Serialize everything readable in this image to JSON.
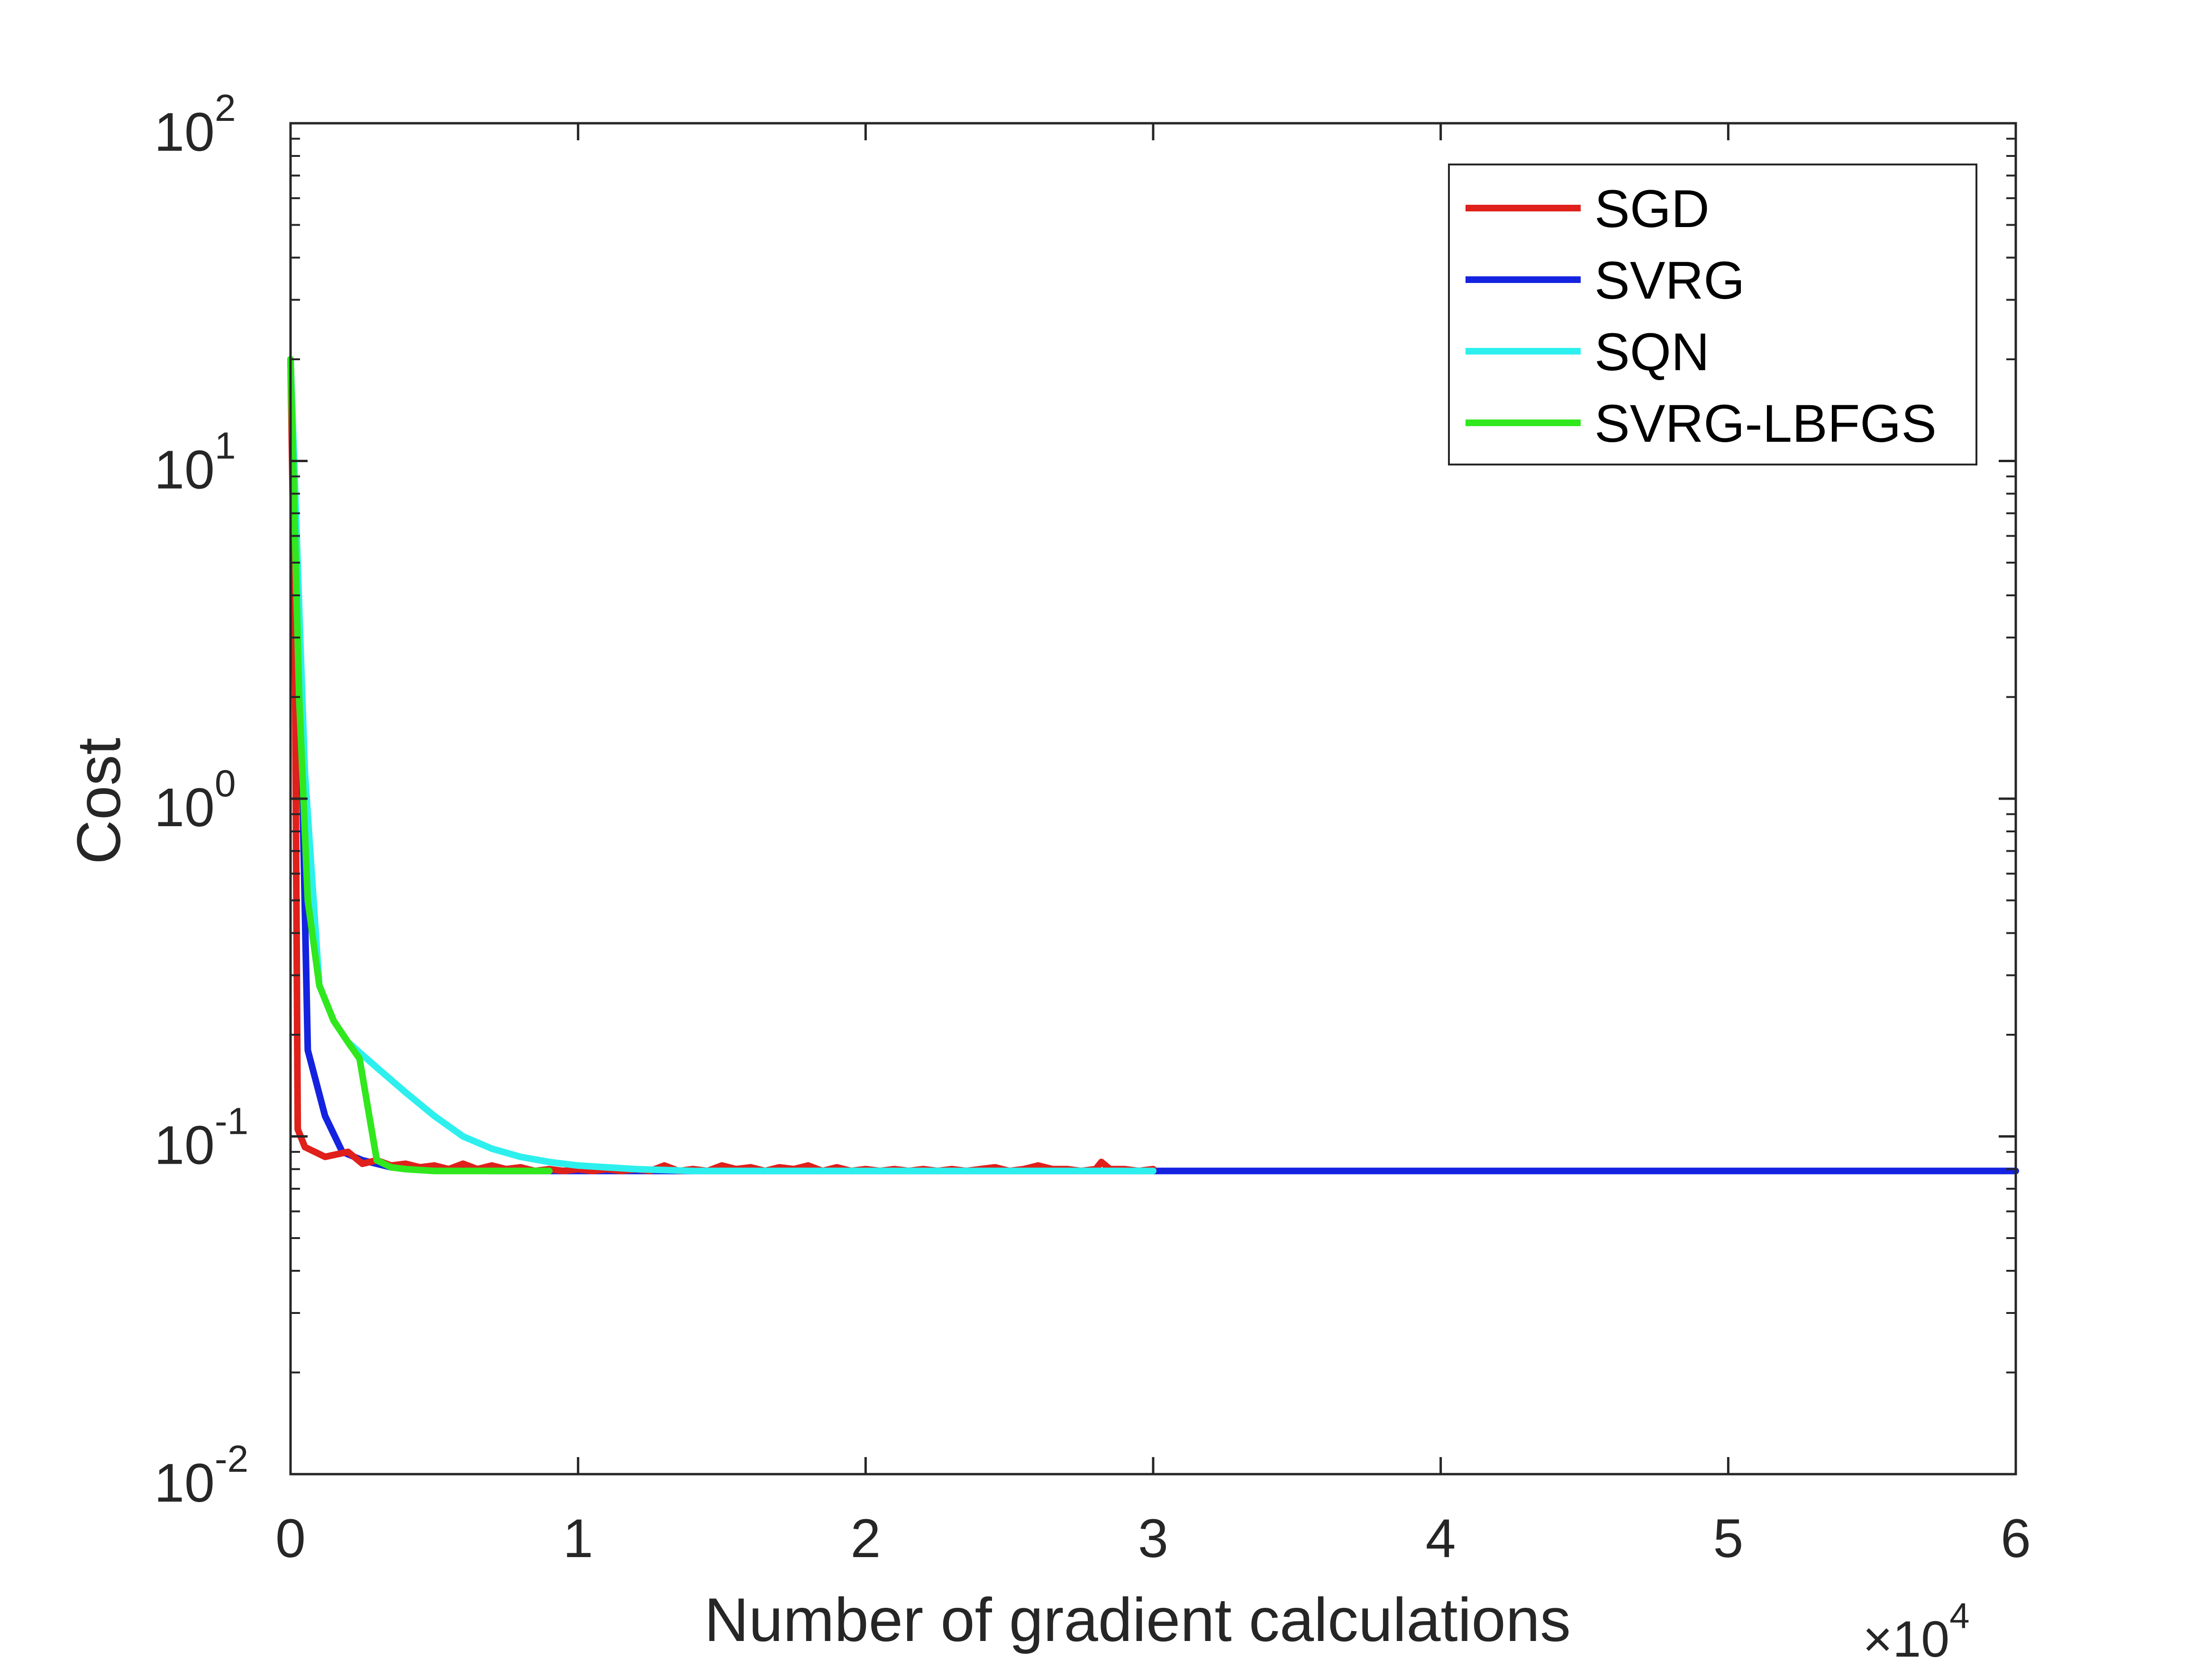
{
  "chart_data": {
    "type": "line",
    "xlabel": "Number of gradient calculations",
    "ylabel": "Cost",
    "x_multiplier": {
      "base": "×10",
      "exp": "4"
    },
    "xlim": [
      0,
      60000
    ],
    "ylim": [
      0.01,
      100
    ],
    "yscale": "log",
    "grid": false,
    "legend_position": "top-right",
    "xticks": [
      0,
      10000,
      20000,
      30000,
      40000,
      50000,
      60000
    ],
    "xtick_labels": [
      "0",
      "1",
      "2",
      "3",
      "4",
      "5",
      "6"
    ],
    "yticks": [
      {
        "value": 0.01,
        "base": "10",
        "exp": "-2"
      },
      {
        "value": 0.1,
        "base": "10",
        "exp": "-1"
      },
      {
        "value": 1,
        "base": "10",
        "exp": "0"
      },
      {
        "value": 10,
        "base": "10",
        "exp": "1"
      },
      {
        "value": 100,
        "base": "10",
        "exp": "2"
      }
    ],
    "series": [
      {
        "name": "SGD",
        "color": "#e0201b",
        "points": [
          [
            0,
            20
          ],
          [
            150,
            3
          ],
          [
            250,
            0.105
          ],
          [
            500,
            0.093
          ],
          [
            1200,
            0.087
          ],
          [
            2000,
            0.09
          ],
          [
            2500,
            0.083
          ],
          [
            3000,
            0.085
          ],
          [
            3500,
            0.082
          ],
          [
            4000,
            0.083
          ],
          [
            4500,
            0.081
          ],
          [
            5000,
            0.082
          ],
          [
            5500,
            0.08
          ],
          [
            6000,
            0.083
          ],
          [
            6500,
            0.08
          ],
          [
            7000,
            0.082
          ],
          [
            7500,
            0.08
          ],
          [
            8000,
            0.081
          ],
          [
            8500,
            0.079
          ],
          [
            9000,
            0.08
          ],
          [
            9500,
            0.079
          ],
          [
            10000,
            0.08
          ],
          [
            10500,
            0.079
          ],
          [
            11000,
            0.08
          ],
          [
            11500,
            0.079
          ],
          [
            12000,
            0.08
          ],
          [
            12500,
            0.079
          ],
          [
            13000,
            0.082
          ],
          [
            13500,
            0.079
          ],
          [
            14000,
            0.08
          ],
          [
            14500,
            0.079
          ],
          [
            15000,
            0.082
          ],
          [
            15500,
            0.08
          ],
          [
            16000,
            0.081
          ],
          [
            16500,
            0.079
          ],
          [
            17000,
            0.081
          ],
          [
            17500,
            0.08
          ],
          [
            18000,
            0.082
          ],
          [
            18500,
            0.079
          ],
          [
            19000,
            0.081
          ],
          [
            19500,
            0.079
          ],
          [
            20000,
            0.08
          ],
          [
            20500,
            0.079
          ],
          [
            21000,
            0.08
          ],
          [
            21500,
            0.079
          ],
          [
            22000,
            0.08
          ],
          [
            22500,
            0.079
          ],
          [
            23000,
            0.08
          ],
          [
            23500,
            0.079
          ],
          [
            24000,
            0.08
          ],
          [
            24500,
            0.081
          ],
          [
            25000,
            0.079
          ],
          [
            25500,
            0.08
          ],
          [
            26000,
            0.082
          ],
          [
            26500,
            0.08
          ],
          [
            27000,
            0.08
          ],
          [
            27500,
            0.079
          ],
          [
            28000,
            0.08
          ],
          [
            28200,
            0.084
          ],
          [
            28500,
            0.08
          ],
          [
            29000,
            0.08
          ],
          [
            29500,
            0.079
          ],
          [
            30000,
            0.08
          ]
        ]
      },
      {
        "name": "SVRG",
        "color": "#1423e0",
        "points": [
          [
            0,
            20
          ],
          [
            300,
            3
          ],
          [
            600,
            0.18
          ],
          [
            1200,
            0.115
          ],
          [
            1800,
            0.09
          ],
          [
            2500,
            0.085
          ],
          [
            3500,
            0.081
          ],
          [
            5000,
            0.08
          ],
          [
            7000,
            0.079
          ],
          [
            10000,
            0.079
          ],
          [
            20000,
            0.079
          ],
          [
            30000,
            0.079
          ],
          [
            40000,
            0.079
          ],
          [
            50000,
            0.079
          ],
          [
            60000,
            0.079
          ]
        ]
      },
      {
        "name": "SQN",
        "color": "#2df0ee",
        "points": [
          [
            0,
            20
          ],
          [
            500,
            1.2
          ],
          [
            1000,
            0.28
          ],
          [
            1500,
            0.22
          ],
          [
            2000,
            0.19
          ],
          [
            3000,
            0.16
          ],
          [
            4000,
            0.135
          ],
          [
            5000,
            0.115
          ],
          [
            6000,
            0.1
          ],
          [
            7000,
            0.092
          ],
          [
            8000,
            0.087
          ],
          [
            9000,
            0.084
          ],
          [
            10000,
            0.082
          ],
          [
            12000,
            0.08
          ],
          [
            14000,
            0.079
          ],
          [
            16000,
            0.079
          ],
          [
            20000,
            0.079
          ],
          [
            25000,
            0.079
          ],
          [
            30000,
            0.079
          ]
        ]
      },
      {
        "name": "SVRG-LBFGS",
        "color": "#30e81d",
        "points": [
          [
            0,
            20
          ],
          [
            300,
            2
          ],
          [
            600,
            0.5
          ],
          [
            1000,
            0.28
          ],
          [
            1500,
            0.22
          ],
          [
            2000,
            0.19
          ],
          [
            2400,
            0.17
          ],
          [
            3000,
            0.085
          ],
          [
            3500,
            0.081
          ],
          [
            4000,
            0.08
          ],
          [
            5000,
            0.079
          ],
          [
            6000,
            0.079
          ],
          [
            7000,
            0.079
          ],
          [
            8000,
            0.079
          ],
          [
            9000,
            0.079
          ]
        ]
      }
    ]
  }
}
